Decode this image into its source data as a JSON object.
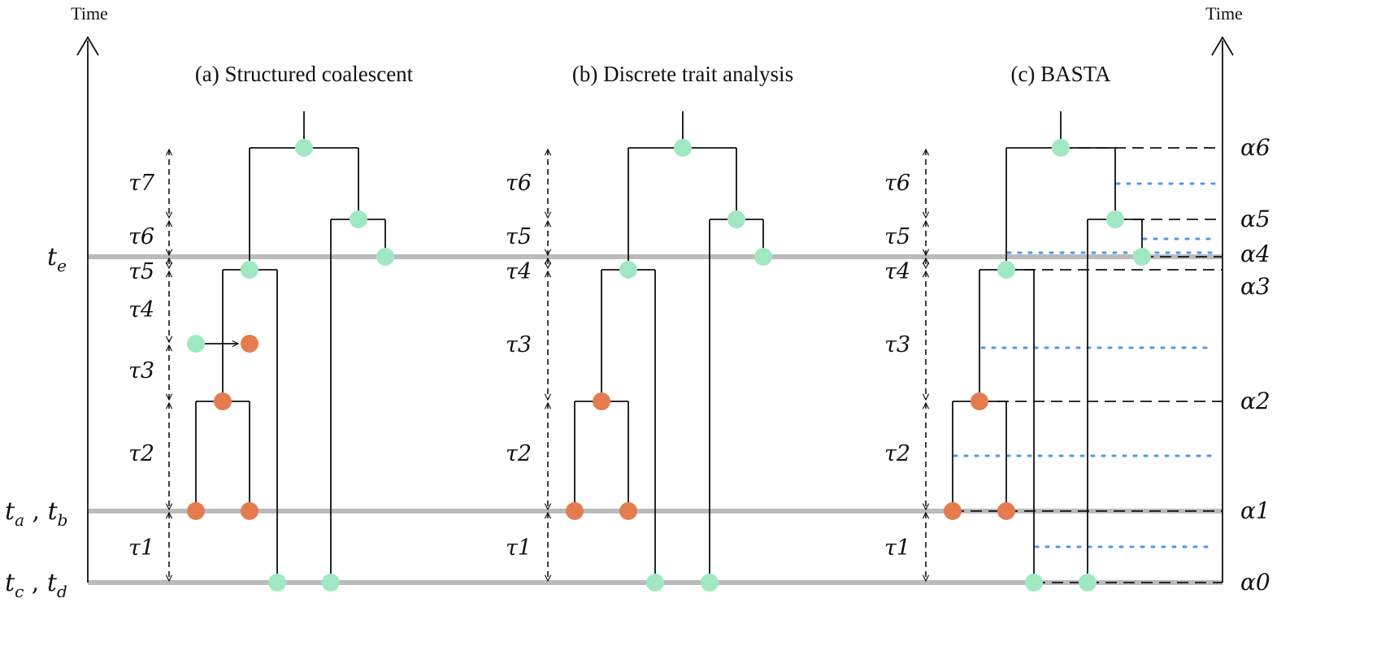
{
  "axes": {
    "left_label": "Time",
    "right_label": "Time"
  },
  "time_labels": {
    "te": {
      "base": "t",
      "sub": "e"
    },
    "tab": {
      "base1": "t",
      "sub1": "a",
      "sep": " , ",
      "base2": "t",
      "sub2": "b"
    },
    "tcd": {
      "base1": "t",
      "sub1": "c",
      "sep": " , ",
      "base2": "t",
      "sub2": "d"
    }
  },
  "panels": {
    "a": {
      "title": "(a) Structured coalescent",
      "taus": [
        "τ7",
        "τ6",
        "τ5",
        "τ4",
        "τ3",
        "τ2",
        "τ1"
      ]
    },
    "b": {
      "title": "(b) Discrete trait analysis",
      "taus": [
        "τ6",
        "τ5",
        "τ4",
        "τ3",
        "τ2",
        "τ1"
      ]
    },
    "c": {
      "title": "(c) BASTA",
      "taus": [
        "τ6",
        "τ5",
        "τ4",
        "τ3",
        "τ2",
        "τ1"
      ]
    }
  },
  "alphas": [
    "α6",
    "α5",
    "α4",
    "α3",
    "α2",
    "α1",
    "α0"
  ],
  "colors": {
    "green": "#9fe8c2",
    "orange": "#e47c50",
    "gray_line": "#bbbbbb",
    "blue_dots": "#4a9ae8",
    "black": "#111111"
  }
}
